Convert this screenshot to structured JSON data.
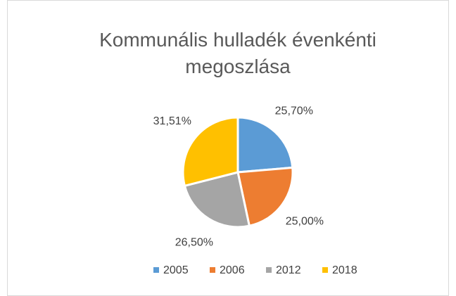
{
  "chart_data": {
    "type": "pie",
    "title": "Kommunális hulladék évenkénti megoszlása",
    "categories": [
      "2005",
      "2006",
      "2012",
      "2018"
    ],
    "values": [
      25.7,
      25.0,
      26.5,
      31.51
    ],
    "value_labels": [
      "25,70%",
      "25,00%",
      "26,50%",
      "31,51%"
    ],
    "colors": [
      "#5b9bd5",
      "#ed7d31",
      "#a5a5a5",
      "#ffc000"
    ],
    "legend": "bottom"
  }
}
